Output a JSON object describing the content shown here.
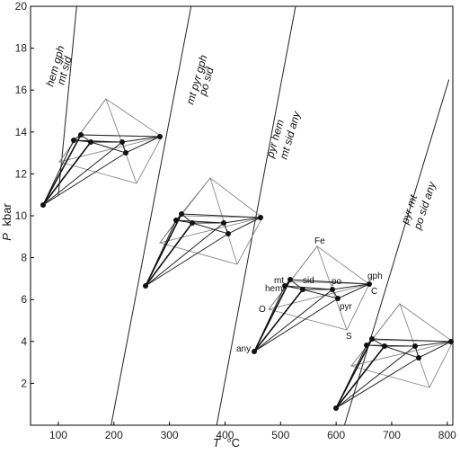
{
  "axes": {
    "x_title_symbol": "T",
    "x_title_unit": "°C",
    "y_title_symbol": "P",
    "y_title_unit": "kbar",
    "x_ticks": [
      "100",
      "200",
      "300",
      "400",
      "500",
      "600",
      "700",
      "800"
    ],
    "y_ticks": [
      "2",
      "4",
      "6",
      "8",
      "10",
      "12",
      "14",
      "16",
      "18",
      "20"
    ],
    "x_range": [
      50,
      810
    ],
    "y_range": [
      0,
      20
    ]
  },
  "reactions": [
    {
      "line1": "hem gph",
      "line2": "mt sid",
      "from": [
        100,
        11
      ],
      "to": [
        133,
        20
      ]
    },
    {
      "line1": "mt pyr gph",
      "line2": "po sid",
      "from": [
        195,
        0
      ],
      "to": [
        339,
        20
      ]
    },
    {
      "line1": "pyr hem",
      "line2": "mt sid any",
      "from": [
        385,
        0
      ],
      "to": [
        527,
        20
      ]
    },
    {
      "line1": "pyr mt",
      "line2": "po sid any",
      "from": [
        615,
        0
      ],
      "to": [
        803,
        16.5
      ]
    }
  ],
  "phase_labels": {
    "fe": "Fe",
    "mt": "mt",
    "sid": "sid",
    "po": "po",
    "gph": "gph",
    "hem": "hem",
    "c": "C",
    "o": "O",
    "pyr": "pyr",
    "s": "S",
    "any": "any"
  }
}
